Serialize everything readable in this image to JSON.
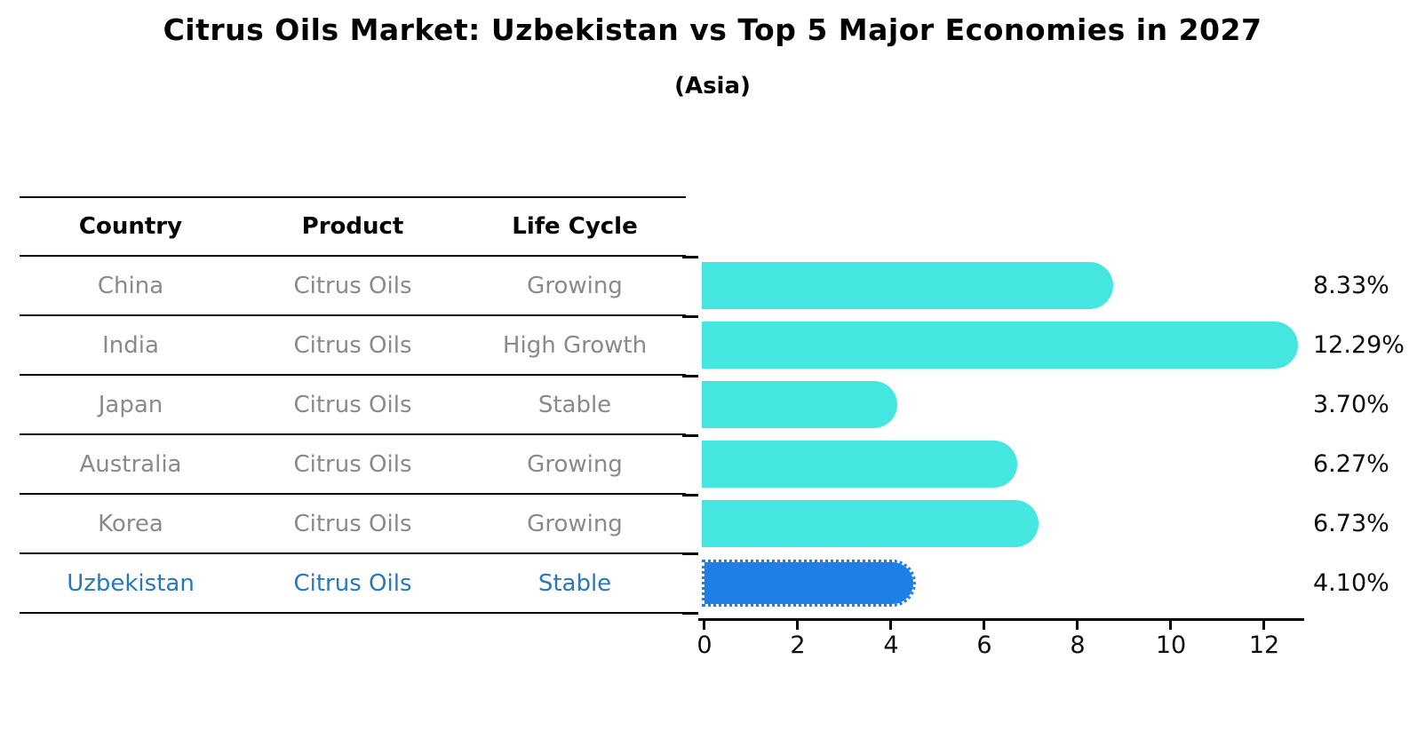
{
  "title": "Citrus Oils Market: Uzbekistan vs Top 5 Major Economies in 2027",
  "subtitle": "(Asia)",
  "table": {
    "headers": [
      "Country",
      "Product",
      "Life Cycle"
    ],
    "rows": [
      {
        "country": "China",
        "product": "Citrus Oils",
        "life_cycle": "Growing"
      },
      {
        "country": "India",
        "product": "Citrus Oils",
        "life_cycle": "High Growth"
      },
      {
        "country": "Japan",
        "product": "Citrus Oils",
        "life_cycle": "Stable"
      },
      {
        "country": "Australia",
        "product": "Citrus Oils",
        "life_cycle": "Growing"
      },
      {
        "country": "Korea",
        "product": "Citrus Oils",
        "life_cycle": "Growing"
      },
      {
        "country": "Uzbekistan",
        "product": "Citrus Oils",
        "life_cycle": "Stable"
      }
    ]
  },
  "chart_data": {
    "type": "bar",
    "orientation": "horizontal",
    "title": "Citrus Oils Market: Uzbekistan vs Top 5 Major Economies in 2027",
    "subtitle": "(Asia)",
    "categories": [
      "China",
      "India",
      "Japan",
      "Australia",
      "Korea",
      "Uzbekistan"
    ],
    "values": [
      8.33,
      12.29,
      3.7,
      6.27,
      6.73,
      4.1
    ],
    "labels": [
      "8.33%",
      "12.29%",
      "3.70%",
      "6.27%",
      "6.73%",
      "4.10%"
    ],
    "xticks": [
      "0",
      "2",
      "4",
      "6",
      "8",
      "10",
      "12"
    ],
    "xlim": [
      0,
      12.9
    ],
    "grid": false,
    "legend": false,
    "highlight_index": 5
  },
  "colors": {
    "bar": "#45e6df",
    "highlight_bar": "#1e7fe6",
    "row_text": "#8a8a8a",
    "highlight_text": "#2878be",
    "axis": "#000000",
    "header_text": "#000000"
  }
}
